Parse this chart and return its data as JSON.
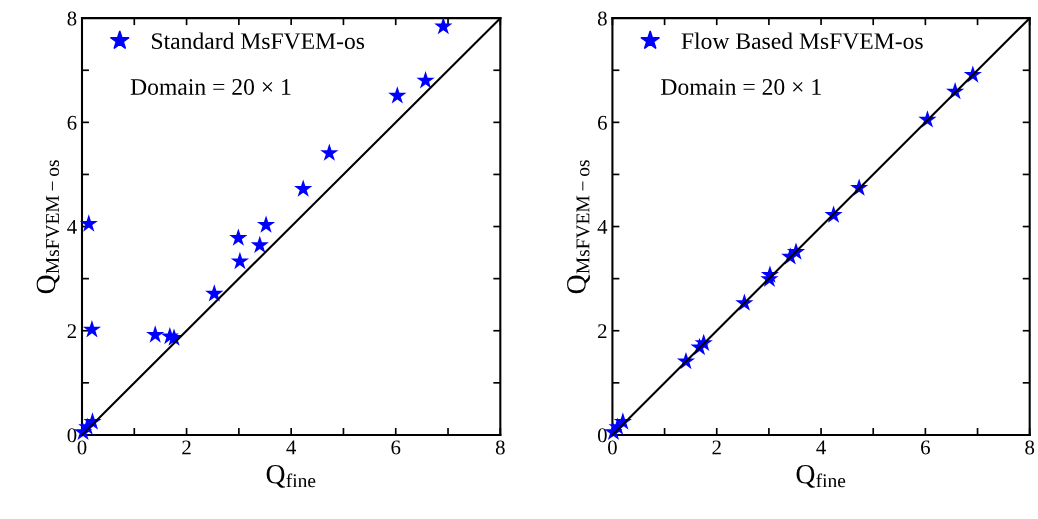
{
  "chart_data": [
    {
      "type": "scatter",
      "xlabel": "Q$_{fine}$",
      "ylabel": "Q$_{MsFVEM−os}$",
      "annotations": [
        "Domain = 20 × 1"
      ],
      "legend": "top left",
      "marker": "star",
      "grid": false,
      "xlim": [
        0,
        8
      ],
      "ylim": [
        0,
        8
      ],
      "xticks": [
        0,
        {
          "value": 1,
          "label": null
        },
        2,
        {
          "value": 3,
          "label": null
        },
        4,
        {
          "value": 5,
          "label": null
        },
        6,
        {
          "value": 7,
          "label": null
        },
        8
      ],
      "yticks": [
        0,
        {
          "value": 1,
          "label": null
        },
        2,
        {
          "value": 3,
          "label": null
        },
        4,
        {
          "value": 5,
          "label": null
        },
        6,
        {
          "value": 7,
          "label": null
        },
        8
      ],
      "series": [
        {
          "name": "Standard MsFVEM-os",
          "color": "#0000ff",
          "x": [
            6.91,
            6.57,
            6.03,
            4.73,
            4.23,
            3.52,
            2.99,
            3.4,
            3.02,
            2.53,
            1.4,
            1.68,
            1.76,
            0.13,
            0.19,
            0.02,
            0.1,
            0.2
          ],
          "values": [
            7.84,
            6.8,
            6.51,
            5.41,
            4.72,
            4.03,
            3.78,
            3.64,
            3.33,
            2.71,
            1.92,
            1.89,
            1.86,
            4.05,
            2.02,
            0.05,
            0.15,
            0.25
          ]
        },
        {
          "type": "line",
          "color": "#000000",
          "x": [
            0,
            8
          ],
          "values": [
            0,
            8
          ],
          "marker": "none"
        }
      ]
    },
    {
      "type": "scatter",
      "xlabel": "Q$_{fine}$",
      "ylabel": "Q$_{MsFVEM−os}$",
      "annotations": [
        "Domain = 20 × 1"
      ],
      "legend": "top left",
      "marker": "star",
      "grid": false,
      "xlim": [
        0,
        8
      ],
      "ylim": [
        0,
        8
      ],
      "xticks": [
        0,
        {
          "value": 1,
          "label": null
        },
        2,
        {
          "value": 3,
          "label": null
        },
        4,
        {
          "value": 5,
          "label": null
        },
        6,
        {
          "value": 7,
          "label": null
        },
        8
      ],
      "yticks": [
        0,
        {
          "value": 1,
          "label": null
        },
        2,
        {
          "value": 3,
          "label": null
        },
        4,
        {
          "value": 5,
          "label": null
        },
        6,
        {
          "value": 7,
          "label": null
        },
        8
      ],
      "series": [
        {
          "name": "Flow Based MsFVEM-os",
          "color": "#0000ff",
          "x": [
            6.91,
            6.57,
            6.04,
            4.73,
            4.24,
            3.52,
            3.41,
            3.02,
            3.01,
            2.53,
            1.75,
            1.67,
            1.41,
            0.02,
            0.1,
            0.2
          ],
          "values": [
            6.91,
            6.59,
            6.05,
            4.74,
            4.22,
            3.51,
            3.42,
            3.07,
            2.99,
            2.53,
            1.76,
            1.68,
            1.41,
            0.05,
            0.15,
            0.25
          ]
        },
        {
          "type": "line",
          "color": "#000000",
          "x": [
            0,
            8
          ],
          "values": [
            0,
            8
          ],
          "marker": "none"
        }
      ]
    }
  ]
}
